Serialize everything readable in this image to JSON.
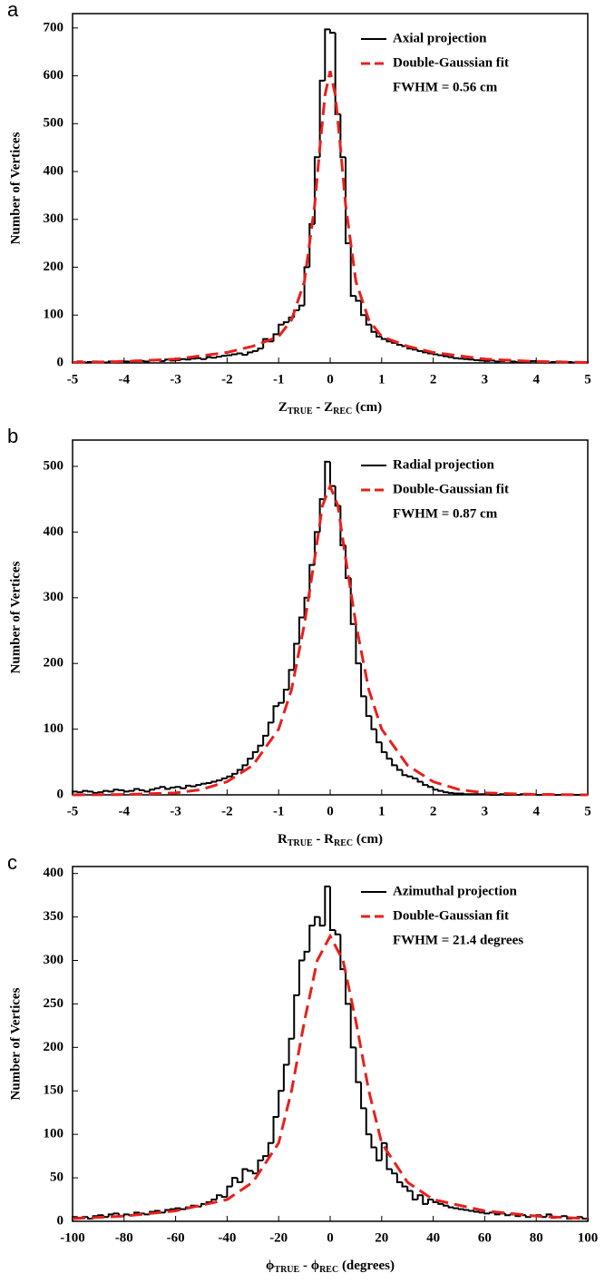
{
  "chart_data": [
    {
      "type": "histogram",
      "panel_label": "a",
      "ylabel": "Number of Vertices",
      "xlabel": [
        "Z",
        "TRUE",
        " - Z",
        "REC",
        " (cm)"
      ],
      "xlim": [
        -5,
        5
      ],
      "ylim": [
        0,
        730
      ],
      "xticks": [
        -5,
        -4,
        -3,
        -2,
        -1,
        0,
        1,
        2,
        3,
        4,
        5
      ],
      "yticks": [
        0,
        100,
        200,
        300,
        400,
        500,
        600,
        700
      ],
      "bins": [
        -5,
        -4.9,
        -4.8,
        -4.7,
        -4.6,
        -4.5,
        -4.4,
        -4.3,
        -4.2,
        -4.1,
        -4,
        -3.9,
        -3.8,
        -3.7,
        -3.6,
        -3.5,
        -3.4,
        -3.3,
        -3.2,
        -3.1,
        -3,
        -2.9,
        -2.8,
        -2.7,
        -2.6,
        -2.5,
        -2.4,
        -2.3,
        -2.2,
        -2.1,
        -2,
        -1.9,
        -1.8,
        -1.7,
        -1.6,
        -1.5,
        -1.4,
        -1.3,
        -1.2,
        -1.1,
        -1,
        -0.9,
        -0.8,
        -0.7,
        -0.6,
        -0.5,
        -0.4,
        -0.3,
        -0.2,
        -0.1,
        0,
        0.1,
        0.2,
        0.3,
        0.4,
        0.5,
        0.6,
        0.7,
        0.8,
        0.9,
        1,
        1.1,
        1.2,
        1.3,
        1.4,
        1.5,
        1.6,
        1.7,
        1.8,
        1.9,
        2,
        2.1,
        2.2,
        2.3,
        2.4,
        2.5,
        2.6,
        2.7,
        2.8,
        2.9,
        3,
        3.1,
        3.2,
        3.3,
        3.4,
        3.5,
        3.6,
        3.7,
        3.8,
        3.9,
        4,
        4.1,
        4.2,
        4.3,
        4.4,
        4.5,
        4.6,
        4.7,
        4.8,
        4.9,
        5
      ],
      "series": [
        {
          "name": "Axial projection",
          "color": "#000000",
          "values": [
            2,
            3,
            1,
            2,
            3,
            2,
            1,
            3,
            2,
            4,
            3,
            2,
            5,
            4,
            3,
            5,
            6,
            4,
            7,
            5,
            6,
            8,
            7,
            9,
            10,
            8,
            12,
            11,
            13,
            15,
            16,
            18,
            20,
            17,
            22,
            25,
            30,
            50,
            45,
            60,
            80,
            85,
            95,
            110,
            120,
            200,
            290,
            430,
            590,
            697,
            690,
            520,
            430,
            250,
            140,
            130,
            100,
            80,
            65,
            55,
            50,
            45,
            42,
            38,
            35,
            30,
            28,
            25,
            22,
            20,
            18,
            16,
            14,
            12,
            10,
            9,
            8,
            7,
            6,
            5,
            4,
            5,
            3,
            4,
            6,
            3,
            2,
            3,
            2,
            4,
            3,
            2,
            1,
            2,
            3,
            1,
            2,
            1,
            1,
            2
          ]
        },
        {
          "name": "Double-Gaussian fit",
          "color": "#e8201c",
          "x": [
            -5,
            -4,
            -3,
            -2,
            -1.5,
            -1,
            -0.75,
            -0.5,
            -0.3,
            -0.2,
            -0.1,
            0,
            0.1,
            0.2,
            0.3,
            0.5,
            0.75,
            1,
            1.5,
            2,
            3,
            4,
            5
          ],
          "values": [
            1,
            3,
            8,
            22,
            35,
            55,
            90,
            170,
            330,
            450,
            560,
            610,
            560,
            450,
            330,
            170,
            90,
            55,
            35,
            22,
            8,
            3,
            1
          ]
        }
      ],
      "annotation": "FWHM = 0.56 cm"
    },
    {
      "type": "histogram",
      "panel_label": "b",
      "ylabel": "Number of Vertices",
      "xlabel": [
        "R",
        "TRUE",
        " - R",
        "REC",
        " (cm)"
      ],
      "xlim": [
        -5,
        5
      ],
      "ylim": [
        0,
        540
      ],
      "xticks": [
        -5,
        -4,
        -3,
        -2,
        -1,
        0,
        1,
        2,
        3,
        4,
        5
      ],
      "yticks": [
        0,
        100,
        200,
        300,
        400,
        500
      ],
      "bins": [
        -5,
        -4.9,
        -4.8,
        -4.7,
        -4.6,
        -4.5,
        -4.4,
        -4.3,
        -4.2,
        -4.1,
        -4,
        -3.9,
        -3.8,
        -3.7,
        -3.6,
        -3.5,
        -3.4,
        -3.3,
        -3.2,
        -3.1,
        -3,
        -2.9,
        -2.8,
        -2.7,
        -2.6,
        -2.5,
        -2.4,
        -2.3,
        -2.2,
        -2.1,
        -2,
        -1.9,
        -1.8,
        -1.7,
        -1.6,
        -1.5,
        -1.4,
        -1.3,
        -1.2,
        -1.1,
        -1,
        -0.9,
        -0.8,
        -0.7,
        -0.6,
        -0.5,
        -0.4,
        -0.3,
        -0.2,
        -0.1,
        0,
        0.1,
        0.2,
        0.3,
        0.4,
        0.5,
        0.6,
        0.7,
        0.8,
        0.9,
        1,
        1.1,
        1.2,
        1.3,
        1.4,
        1.5,
        1.6,
        1.7,
        1.8,
        1.9,
        2,
        2.1,
        2.2,
        2.3,
        2.4,
        2.5,
        2.6,
        2.7,
        2.8,
        2.9,
        3,
        3.1,
        3.2,
        3.3,
        3.4,
        3.5,
        3.6,
        3.7,
        3.8,
        3.9,
        4,
        4.1,
        4.2,
        4.3,
        4.4,
        4.5,
        4.6,
        4.7,
        4.8,
        4.9,
        5
      ],
      "series": [
        {
          "name": "Radial projection",
          "color": "#000000",
          "values": [
            5,
            4,
            6,
            5,
            3,
            4,
            6,
            5,
            8,
            7,
            5,
            6,
            9,
            7,
            5,
            8,
            10,
            12,
            9,
            11,
            12,
            10,
            14,
            13,
            15,
            17,
            18,
            20,
            22,
            25,
            28,
            32,
            38,
            45,
            55,
            65,
            75,
            90,
            110,
            135,
            140,
            160,
            190,
            230,
            270,
            300,
            350,
            400,
            450,
            507,
            470,
            440,
            380,
            330,
            260,
            200,
            150,
            120,
            100,
            80,
            65,
            55,
            45,
            38,
            30,
            28,
            25,
            20,
            15,
            12,
            8,
            6,
            4,
            3,
            2,
            2,
            1,
            1,
            1,
            1,
            1,
            0,
            0,
            1,
            0,
            0,
            0,
            1,
            0,
            0,
            0,
            0,
            1,
            0,
            0,
            0,
            0,
            0,
            0,
            0
          ]
        },
        {
          "name": "Double-Gaussian fit",
          "color": "#e8201c",
          "x": [
            -5,
            -4,
            -3,
            -2.5,
            -2,
            -1.5,
            -1,
            -0.75,
            -0.5,
            -0.3,
            -0.15,
            0,
            0.15,
            0.3,
            0.5,
            0.75,
            1,
            1.5,
            2,
            2.5,
            3,
            4,
            5
          ],
          "values": [
            0,
            0.5,
            3,
            8,
            20,
            45,
            100,
            160,
            260,
            360,
            440,
            470,
            440,
            360,
            260,
            160,
            100,
            45,
            20,
            8,
            3,
            0.5,
            0
          ]
        }
      ],
      "annotation": "FWHM = 0.87 cm"
    },
    {
      "type": "histogram",
      "panel_label": "c",
      "ylabel": "Number of Vertices",
      "xlabel": [
        "ϕ",
        "TRUE",
        " - ϕ",
        "REC",
        " (degrees)"
      ],
      "xlim": [
        -100,
        100
      ],
      "ylim": [
        0,
        408
      ],
      "xticks": [
        -100,
        -80,
        -60,
        -40,
        -20,
        0,
        20,
        40,
        60,
        80,
        100
      ],
      "yticks": [
        0,
        50,
        100,
        150,
        200,
        250,
        300,
        350,
        400
      ],
      "bins": [
        -100,
        -98,
        -96,
        -94,
        -92,
        -90,
        -88,
        -86,
        -84,
        -82,
        -80,
        -78,
        -76,
        -74,
        -72,
        -70,
        -68,
        -66,
        -64,
        -62,
        -60,
        -58,
        -56,
        -54,
        -52,
        -50,
        -48,
        -46,
        -44,
        -42,
        -40,
        -38,
        -36,
        -34,
        -32,
        -30,
        -28,
        -26,
        -24,
        -22,
        -20,
        -18,
        -16,
        -14,
        -12,
        -10,
        -8,
        -6,
        -4,
        -2,
        0,
        2,
        4,
        6,
        8,
        10,
        12,
        14,
        16,
        18,
        20,
        22,
        24,
        26,
        28,
        30,
        32,
        34,
        36,
        38,
        40,
        42,
        44,
        46,
        48,
        50,
        52,
        54,
        56,
        58,
        60,
        62,
        64,
        66,
        68,
        70,
        72,
        74,
        76,
        78,
        80,
        82,
        84,
        86,
        88,
        90,
        92,
        94,
        96,
        98,
        100
      ],
      "series": [
        {
          "name": "Azimuthal projection",
          "color": "#000000",
          "values": [
            5,
            4,
            5,
            3,
            6,
            7,
            5,
            8,
            9,
            6,
            8,
            7,
            10,
            9,
            8,
            11,
            12,
            10,
            13,
            14,
            15,
            14,
            16,
            18,
            17,
            20,
            22,
            25,
            30,
            28,
            40,
            50,
            45,
            60,
            58,
            55,
            70,
            75,
            90,
            120,
            150,
            180,
            210,
            260,
            300,
            310,
            340,
            350,
            340,
            385,
            335,
            330,
            290,
            250,
            200,
            160,
            130,
            100,
            85,
            70,
            90,
            60,
            55,
            45,
            40,
            35,
            25,
            30,
            20,
            25,
            22,
            20,
            18,
            16,
            15,
            14,
            13,
            12,
            11,
            10,
            9,
            10,
            8,
            9,
            7,
            8,
            6,
            7,
            5,
            6,
            7,
            5,
            8,
            4,
            5,
            6,
            3,
            4,
            5,
            3
          ]
        },
        {
          "name": "Double-Gaussian fit",
          "color": "#e8201c",
          "x": [
            -100,
            -80,
            -60,
            -40,
            -30,
            -20,
            -15,
            -10,
            -5,
            0,
            5,
            10,
            15,
            20,
            30,
            40,
            60,
            80,
            100
          ],
          "values": [
            3,
            6,
            12,
            25,
            45,
            90,
            150,
            230,
            300,
            328,
            300,
            230,
            150,
            90,
            45,
            25,
            12,
            6,
            3
          ]
        }
      ],
      "annotation": "FWHM = 21.4 degrees"
    }
  ]
}
